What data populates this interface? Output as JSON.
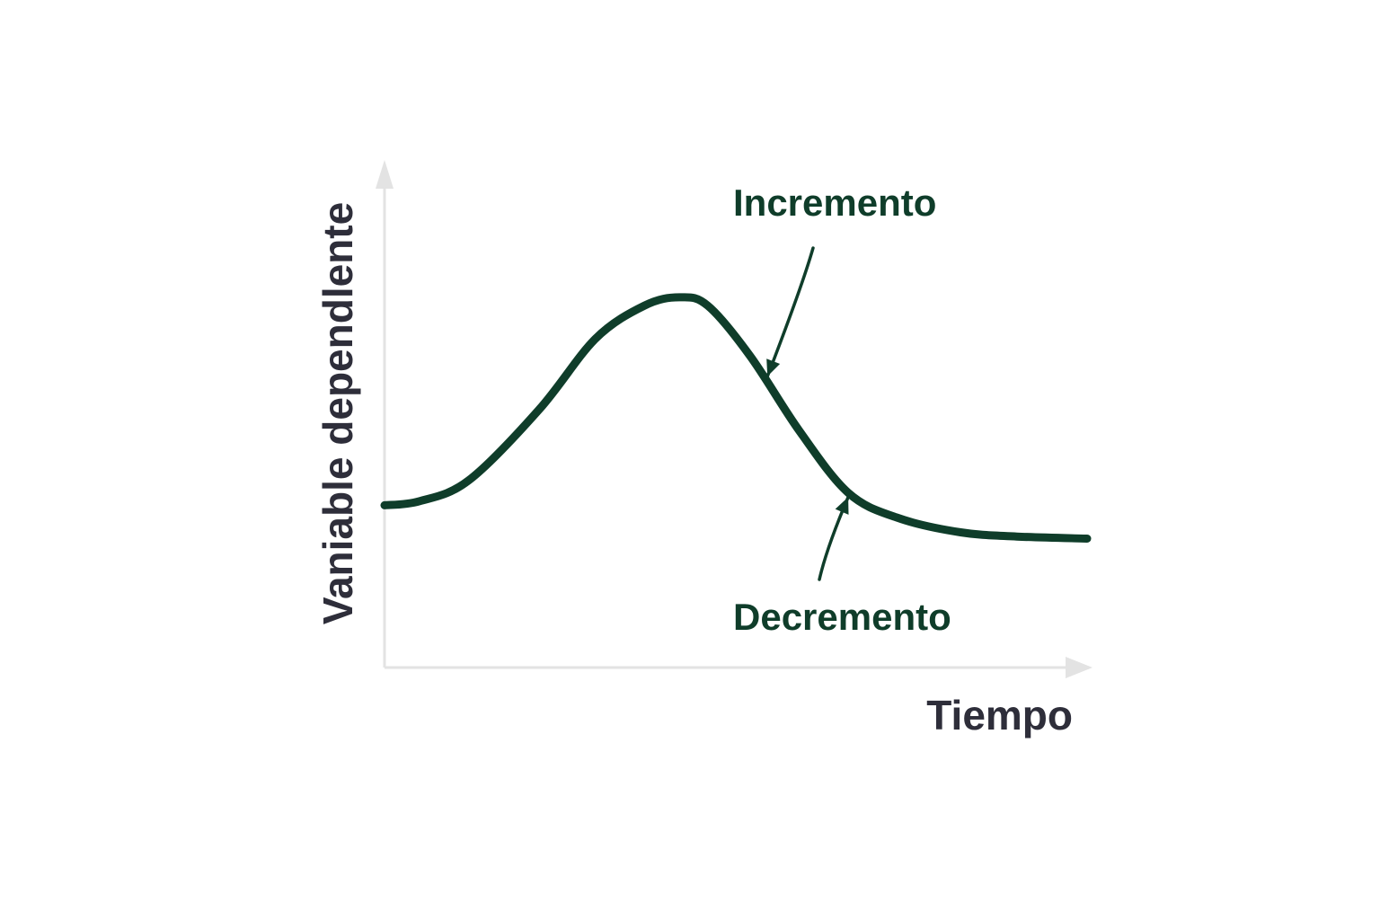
{
  "chart_data": {
    "type": "line",
    "title": "",
    "xlabel": "Tiempo",
    "ylabel": "Vaniable dependlente",
    "ticks": false,
    "grid": false,
    "legend": "none",
    "xlim": [
      0,
      10
    ],
    "ylim": [
      0,
      10
    ],
    "series": [
      {
        "x": [
          0,
          0.5,
          1.2,
          2.2,
          3.0,
          3.7,
          4.2,
          4.6,
          5.2,
          5.9,
          6.6,
          7.3,
          8.2,
          9.0,
          10.0
        ],
        "y": [
          3.9,
          4.0,
          4.5,
          6.2,
          7.9,
          8.7,
          8.9,
          8.7,
          7.5,
          5.7,
          4.2,
          3.6,
          3.25,
          3.15,
          3.1
        ]
      }
    ],
    "annotations": [
      {
        "text": "Incremento",
        "point": [
          5.45,
          7.0
        ]
      },
      {
        "text": "Decremento",
        "point": [
          6.6,
          4.1
        ]
      }
    ]
  },
  "colors": {
    "curve": "#0f3d2a",
    "annotation": "#0f3d2a",
    "axis": "#e3e3e3",
    "axis_title": "#2e2e3a"
  }
}
